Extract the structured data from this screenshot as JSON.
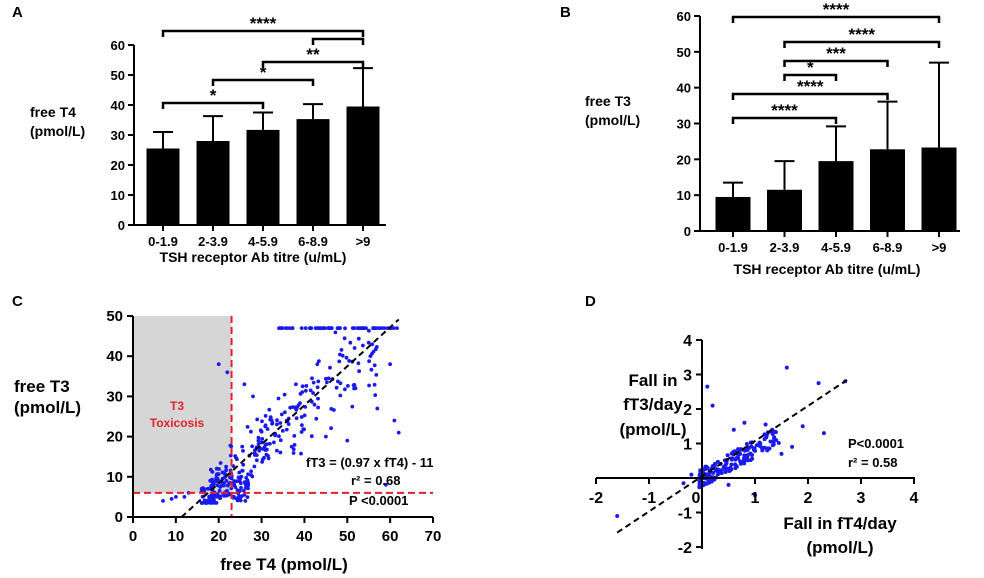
{
  "figure": {
    "panel_labels": [
      "A",
      "B",
      "C",
      "D"
    ]
  },
  "colors": {
    "bar": "#000000",
    "point": "#1a1aee",
    "threshold": "#e0222a",
    "toxicosis_region": "#d6d6d6",
    "fit_line": "#000000"
  },
  "chart_data": [
    {
      "panel": "A",
      "type": "bar",
      "categories": [
        "0-1.9",
        "2-3.9",
        "4-5.9",
        "6-8.9",
        ">9"
      ],
      "values": [
        25.5,
        28,
        31.7,
        35.3,
        39.5
      ],
      "errors": [
        5.5,
        8.3,
        5.8,
        5,
        12.8
      ],
      "ylabel_lines": [
        "free T4",
        "(pmol/L)"
      ],
      "xlabel": "TSH receptor Ab titre (u/mL)",
      "ylim": [
        0,
        60
      ],
      "yticks": [
        "0",
        "10",
        "20",
        "30",
        "40",
        "50",
        "60"
      ],
      "comparisons": [
        {
          "from": 0,
          "to": 4,
          "label": "****"
        },
        {
          "from": 3,
          "to": 4,
          "label": ""
        },
        {
          "from": 2,
          "to": 4,
          "label": "**"
        },
        {
          "from": 1,
          "to": 3,
          "label": "*"
        },
        {
          "from": 0,
          "to": 2,
          "label": "*"
        }
      ]
    },
    {
      "panel": "B",
      "type": "bar",
      "categories": [
        "0-1.9",
        "2-3.9",
        "4-5.9",
        "6-8.9",
        ">9"
      ],
      "values": [
        9.5,
        11.5,
        19.5,
        22.8,
        23.3
      ],
      "errors": [
        4,
        8,
        9.7,
        13.3,
        23.7
      ],
      "ylabel_lines": [
        "free T3",
        "(pmol/L)"
      ],
      "xlabel": "TSH receptor Ab titre (u/mL)",
      "ylim": [
        0,
        60
      ],
      "yticks": [
        "0",
        "10",
        "20",
        "30",
        "40",
        "50",
        "60"
      ],
      "comparisons": [
        {
          "from": 0,
          "to": 4,
          "label": "****"
        },
        {
          "from": 1,
          "to": 4,
          "label": "****"
        },
        {
          "from": 1,
          "to": 3,
          "label": "***"
        },
        {
          "from": 1,
          "to": 2,
          "label": "*"
        },
        {
          "from": 0,
          "to": 3,
          "label": "****"
        },
        {
          "from": 0,
          "to": 2,
          "label": "****"
        }
      ]
    },
    {
      "panel": "C",
      "type": "scatter",
      "xlabel": "free T4 (pmol/L)",
      "ylabel_lines": [
        "free T3",
        "(pmol/L)"
      ],
      "xlim": [
        0,
        70
      ],
      "ylim": [
        0,
        50
      ],
      "xticks": [
        "0",
        "10",
        "20",
        "30",
        "40",
        "50",
        "60",
        "70"
      ],
      "yticks": [
        "0",
        "10",
        "20",
        "30",
        "40",
        "50"
      ],
      "shaded_region_label": [
        "T3",
        "Toxicosis"
      ],
      "thresholds": {
        "x": 23,
        "y": 6
      },
      "fit": {
        "slope": 0.97,
        "intercept": -11
      },
      "annotations": [
        "fT3 = (0.97 x fT4) - 11",
        "r² = 0.68",
        "P <0.0001"
      ],
      "points_description": "approximately 400 patients"
    },
    {
      "panel": "D",
      "type": "scatter",
      "xlabel_lines": [
        "Fall in fT4/day",
        "(pmol/L)"
      ],
      "ylabel_lines": [
        "Fall in",
        "fT3/day",
        "(pmol/L)"
      ],
      "xlim": [
        -2,
        4
      ],
      "ylim": [
        -2,
        4
      ],
      "xticks": [
        "-2",
        "-1",
        "0",
        "1",
        "2",
        "3",
        "4"
      ],
      "yticks": [
        "-2",
        "-1",
        "0",
        "1",
        "2",
        "3",
        "4"
      ],
      "fit": {
        "slope": 1.02,
        "intercept": 0.05
      },
      "annotations": [
        "P<0.0001",
        "r² = 0.58"
      ]
    }
  ]
}
